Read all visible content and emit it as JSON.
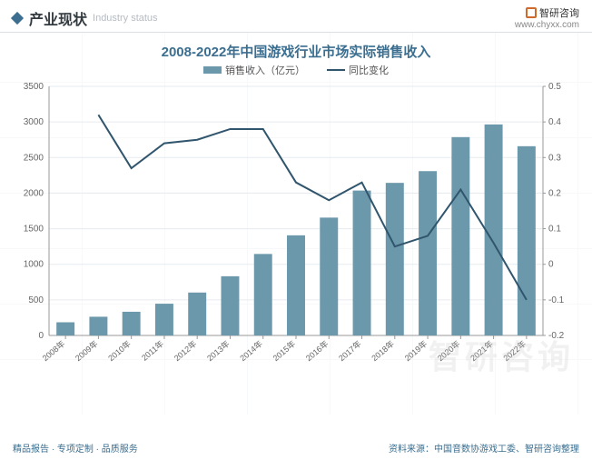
{
  "header": {
    "title_main": "产业现状",
    "title_sub": "Industry status",
    "brand_name": "智研咨询",
    "brand_url": "www.chyxx.com"
  },
  "chart": {
    "type": "bar+line",
    "title": "2008-2022年中国游戏行业市场实际销售收入",
    "title_color": "#3b6e8f",
    "title_fontsize": 15,
    "legend": {
      "bar_label": "销售收入（亿元）",
      "line_label": "同比变化"
    },
    "categories": [
      "2008年",
      "2009年",
      "2010年",
      "2011年",
      "2012年",
      "2013年",
      "2014年",
      "2015年",
      "2016年",
      "2017年",
      "2018年",
      "2019年",
      "2020年",
      "2021年",
      "2022年"
    ],
    "bar_values": [
      185,
      263,
      333,
      446,
      603,
      832,
      1145,
      1407,
      1656,
      2036,
      2144,
      2309,
      2787,
      2965,
      2659
    ],
    "line_values": [
      null,
      0.42,
      0.27,
      0.34,
      0.35,
      0.38,
      0.38,
      0.23,
      0.18,
      0.23,
      0.05,
      0.08,
      0.21,
      0.06,
      -0.1
    ],
    "bar_color": "#6b98ab",
    "line_color": "#30556d",
    "background_color": "#ffffff",
    "grid_color": "#e6ebef",
    "axis_color": "#999999",
    "label_color": "#666666",
    "y_left": {
      "min": 0,
      "max": 3500,
      "step": 500
    },
    "y_right": {
      "min": -0.2,
      "max": 0.5,
      "step": 0.1
    },
    "bar_width_ratio": 0.55,
    "line_width": 2,
    "tick_fontsize": 10
  },
  "footer": {
    "left": "精品报告 · 专项定制 · 品质服务",
    "right": "资料来源：中国音数协游戏工委、智研咨询整理"
  },
  "watermark": "智研咨询"
}
